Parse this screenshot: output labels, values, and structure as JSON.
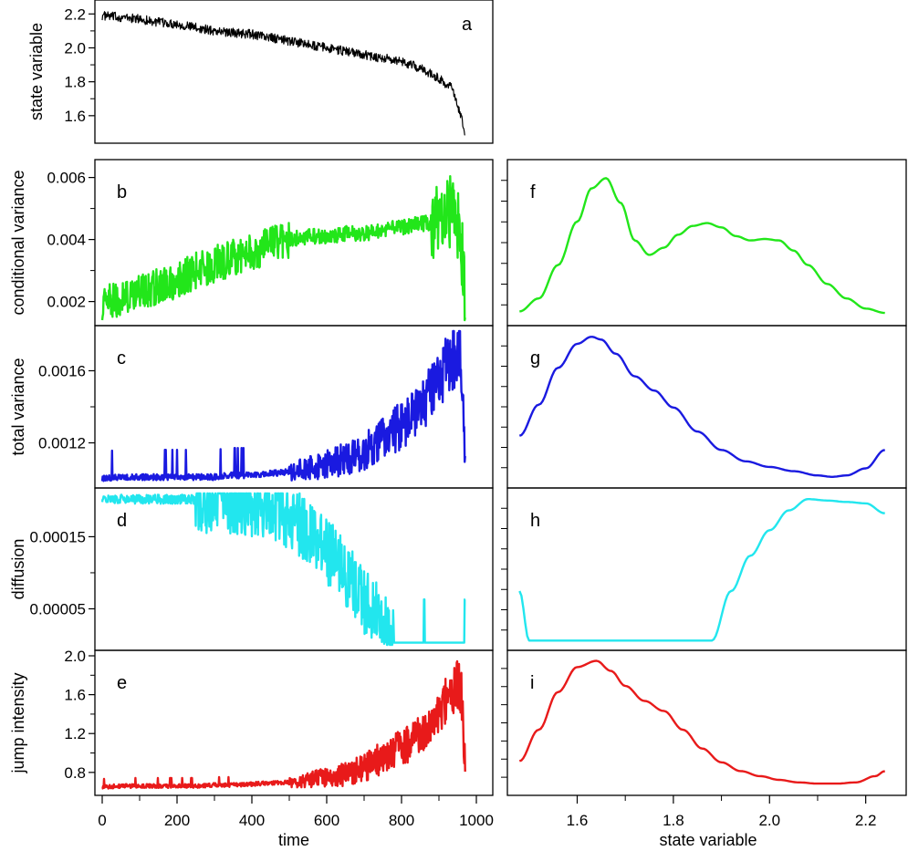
{
  "chart_data": [
    {
      "panel": "a",
      "type": "line",
      "color": "#000000",
      "ylabel": "state variable",
      "xlim": [
        0,
        1000
      ],
      "ylim": [
        1.47,
        2.25
      ],
      "yticks": [
        1.6,
        1.8,
        2.0,
        2.2
      ],
      "ytick_labels": [
        "1.6",
        "1.8",
        "2.0",
        "2.2"
      ],
      "x": [
        0,
        50,
        100,
        150,
        200,
        250,
        300,
        350,
        400,
        450,
        500,
        550,
        600,
        650,
        700,
        750,
        800,
        850,
        900,
        920,
        930,
        940,
        950,
        960,
        970
      ],
      "values": [
        2.19,
        2.18,
        2.17,
        2.15,
        2.14,
        2.12,
        2.1,
        2.09,
        2.08,
        2.06,
        2.04,
        2.02,
        2.0,
        1.98,
        1.96,
        1.94,
        1.92,
        1.88,
        1.82,
        1.78,
        1.8,
        1.72,
        1.65,
        1.6,
        1.48
      ]
    },
    {
      "panel": "b",
      "type": "line",
      "color": "#22e61a",
      "ylabel": "conditional variance",
      "xlim": [
        0,
        1000
      ],
      "ylim": [
        0.0014,
        0.0064
      ],
      "yticks": [
        0.002,
        0.004,
        0.006
      ],
      "ytick_labels": [
        "0.002",
        "0.004",
        "0.006"
      ],
      "x": [
        0,
        50,
        100,
        150,
        200,
        250,
        300,
        350,
        400,
        450,
        500,
        550,
        600,
        650,
        700,
        750,
        800,
        850,
        900,
        930,
        950,
        960,
        970
      ],
      "values": [
        0.0019,
        0.0021,
        0.0023,
        0.0025,
        0.0027,
        0.003,
        0.0032,
        0.0034,
        0.0036,
        0.0038,
        0.004,
        0.0041,
        0.0041,
        0.0042,
        0.0042,
        0.0043,
        0.0044,
        0.0045,
        0.0046,
        0.0048,
        0.0045,
        0.004,
        0.0016
      ]
    },
    {
      "panel": "c",
      "type": "line",
      "color": "#1a1ae0",
      "ylabel": "total variance",
      "xlim": [
        0,
        1000
      ],
      "ylim": [
        0.00098,
        0.00182
      ],
      "yticks": [
        0.0012,
        0.0016
      ],
      "ytick_labels": [
        "0.0012",
        "0.0016"
      ],
      "x": [
        0,
        50,
        100,
        150,
        200,
        250,
        300,
        350,
        400,
        450,
        500,
        550,
        600,
        650,
        700,
        750,
        800,
        850,
        900,
        930,
        950,
        960,
        970
      ],
      "values": [
        0.001,
        0.00101,
        0.00101,
        0.00101,
        0.00101,
        0.00101,
        0.00101,
        0.00102,
        0.00102,
        0.00103,
        0.00104,
        0.00106,
        0.00108,
        0.00111,
        0.00115,
        0.00122,
        0.0013,
        0.0014,
        0.00155,
        0.00165,
        0.0017,
        0.00165,
        0.0012
      ]
    },
    {
      "panel": "d",
      "type": "line",
      "color": "#22e6ee",
      "ylabel": "diffusion",
      "xlim": [
        0,
        1000
      ],
      "ylim": [
        0.0,
        0.00021
      ],
      "yticks": [
        5e-05,
        0.00015
      ],
      "ytick_labels": [
        "0.00005",
        "0.00015"
      ],
      "x": [
        0,
        50,
        100,
        150,
        200,
        250,
        300,
        350,
        400,
        450,
        500,
        550,
        600,
        650,
        700,
        750,
        780,
        800,
        850,
        860,
        870,
        900,
        950,
        970
      ],
      "values": [
        0.000202,
        0.000202,
        0.000202,
        0.000202,
        0.000202,
        0.000202,
        0.0002,
        0.000198,
        0.000195,
        0.00019,
        0.00018,
        0.00016,
        0.00013,
        0.0001,
        6e-05,
        3e-05,
        3e-06,
        3e-06,
        3e-06,
        3e-06,
        3e-06,
        3e-06,
        3e-06,
        3e-06
      ]
    },
    {
      "panel": "e",
      "type": "line",
      "color": "#e81a1a",
      "ylabel": "jump intensity",
      "xlim": [
        0,
        1000
      ],
      "ylim": [
        0.62,
        2.0
      ],
      "yticks": [
        0.8,
        1.2,
        1.6,
        2.0
      ],
      "ytick_labels": [
        "0.8",
        "1.2",
        "1.6",
        "2.0"
      ],
      "xticks": [
        0,
        200,
        400,
        600,
        800,
        1000
      ],
      "xtick_labels": [
        "0",
        "200",
        "400",
        "600",
        "800",
        "1000"
      ],
      "xlabel": "time",
      "x": [
        0,
        50,
        100,
        150,
        200,
        250,
        300,
        350,
        400,
        450,
        500,
        550,
        600,
        650,
        700,
        750,
        800,
        850,
        900,
        930,
        950,
        960,
        970
      ],
      "values": [
        0.65,
        0.66,
        0.66,
        0.66,
        0.66,
        0.66,
        0.67,
        0.67,
        0.68,
        0.69,
        0.7,
        0.72,
        0.75,
        0.78,
        0.85,
        0.95,
        1.05,
        1.2,
        1.4,
        1.6,
        1.7,
        1.6,
        0.95
      ]
    },
    {
      "panel": "f",
      "type": "line",
      "color": "#22e61a",
      "xlim": [
        1.47,
        2.25
      ],
      "x": [
        1.48,
        1.52,
        1.56,
        1.6,
        1.63,
        1.66,
        1.69,
        1.72,
        1.75,
        1.78,
        1.81,
        1.84,
        1.87,
        1.9,
        1.93,
        1.96,
        1.99,
        2.02,
        2.05,
        2.08,
        2.12,
        2.16,
        2.2,
        2.24
      ],
      "values": [
        0.03,
        0.12,
        0.35,
        0.65,
        0.88,
        0.95,
        0.78,
        0.52,
        0.42,
        0.47,
        0.56,
        0.62,
        0.64,
        0.61,
        0.55,
        0.52,
        0.53,
        0.52,
        0.45,
        0.35,
        0.22,
        0.12,
        0.05,
        0.02
      ]
    },
    {
      "panel": "g",
      "type": "line",
      "color": "#1a1ae0",
      "xlim": [
        1.47,
        2.25
      ],
      "x": [
        1.48,
        1.52,
        1.56,
        1.6,
        1.63,
        1.65,
        1.68,
        1.72,
        1.76,
        1.8,
        1.85,
        1.9,
        1.95,
        2.0,
        2.05,
        2.1,
        2.13,
        2.16,
        2.2,
        2.24
      ],
      "values": [
        0.3,
        0.52,
        0.78,
        0.95,
        1.0,
        0.98,
        0.88,
        0.72,
        0.62,
        0.5,
        0.33,
        0.2,
        0.12,
        0.08,
        0.05,
        0.02,
        0.01,
        0.02,
        0.07,
        0.2
      ]
    },
    {
      "panel": "h",
      "type": "line",
      "color": "#22e6ee",
      "xlim": [
        1.47,
        2.25
      ],
      "x": [
        1.48,
        1.5,
        1.53,
        1.6,
        1.7,
        1.8,
        1.87,
        1.88,
        1.92,
        1.96,
        2.0,
        2.04,
        2.08,
        2.12,
        2.16,
        2.2,
        2.24
      ],
      "values": [
        0.35,
        0.0,
        0.0,
        0.0,
        0.0,
        0.0,
        0.0,
        0.0,
        0.35,
        0.6,
        0.78,
        0.92,
        1.0,
        0.99,
        0.98,
        0.97,
        0.9
      ]
    },
    {
      "panel": "i",
      "type": "line",
      "color": "#e81a1a",
      "xlim": [
        1.47,
        2.25
      ],
      "xticks": [
        1.6,
        1.8,
        2.0,
        2.2
      ],
      "xtick_labels": [
        "1.6",
        "1.8",
        "2.0",
        "2.2"
      ],
      "xlabel": "state variable",
      "x": [
        1.48,
        1.52,
        1.56,
        1.6,
        1.64,
        1.67,
        1.7,
        1.74,
        1.78,
        1.82,
        1.86,
        1.9,
        1.94,
        1.98,
        2.02,
        2.06,
        2.1,
        2.14,
        2.18,
        2.22,
        2.24
      ],
      "values": [
        0.2,
        0.45,
        0.75,
        0.95,
        1.0,
        0.92,
        0.8,
        0.68,
        0.6,
        0.45,
        0.3,
        0.19,
        0.12,
        0.08,
        0.05,
        0.03,
        0.02,
        0.02,
        0.03,
        0.08,
        0.12
      ]
    }
  ]
}
